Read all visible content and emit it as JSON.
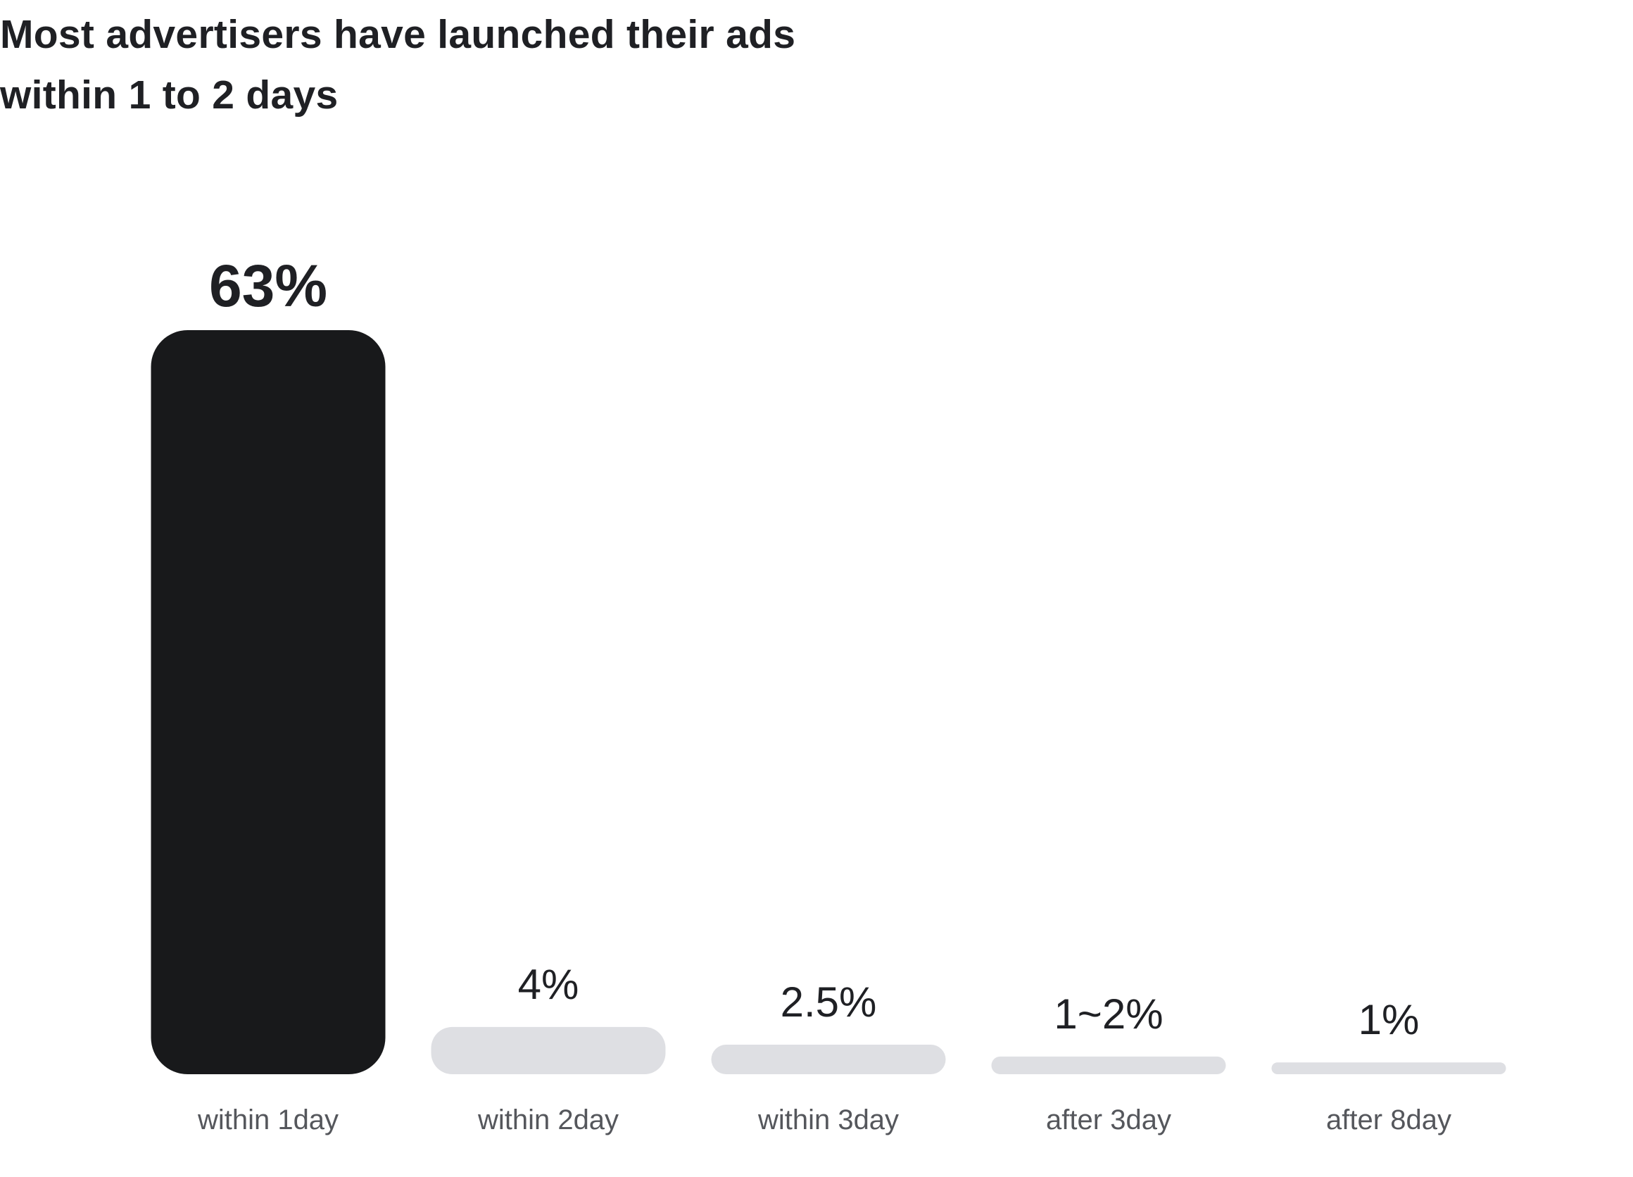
{
  "chart_data": {
    "type": "bar",
    "title_lines": [
      "Most advertisers have launched their ads",
      "within 1 to 2 days"
    ],
    "categories": [
      "within 1day",
      "within 2day",
      "within 3day",
      "after 3day",
      "after 8day"
    ],
    "values": [
      63,
      4,
      2.5,
      1.5,
      1
    ],
    "value_labels": [
      "63%",
      "4%",
      "2.5%",
      "1~2%",
      "1%"
    ],
    "xlabel": "",
    "ylabel": "",
    "ylim": [
      0,
      63
    ],
    "grid": false,
    "legend": "none",
    "highlight_index": 0,
    "colors": {
      "highlight": "#18191b",
      "bar": "#dedfe3",
      "title": "#1f2024",
      "value_label": "#1f2024",
      "category_label": "#55575c"
    }
  }
}
